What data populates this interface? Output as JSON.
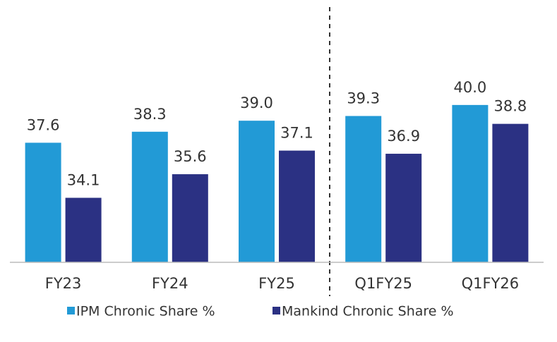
{
  "chart_data": {
    "type": "bar",
    "categories": [
      "FY23",
      "FY24",
      "FY25",
      "Q1FY25",
      "Q1FY26"
    ],
    "series": [
      {
        "name": "IPM Chronic Share %",
        "color": "#229ad6",
        "values": [
          37.6,
          38.3,
          39.0,
          39.3,
          40.0
        ],
        "value_labels": [
          "37.6",
          "38.3",
          "39.0",
          "39.3",
          "40.0"
        ]
      },
      {
        "name": "Mankind Chronic Share %",
        "color": "#2b3183",
        "values": [
          34.1,
          35.6,
          37.1,
          36.9,
          38.8
        ],
        "value_labels": [
          "34.1",
          "35.6",
          "37.1",
          "36.9",
          "38.8"
        ]
      }
    ],
    "ylim": [
      30,
      46
    ],
    "legend": "bottom"
  }
}
